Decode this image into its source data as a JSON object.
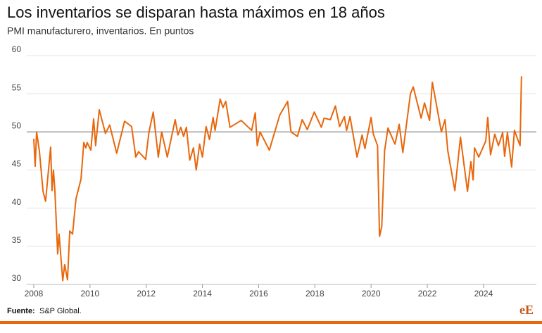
{
  "chart_data": {
    "type": "line",
    "title": "Los inventarios se disparan hasta máximos en 18 años",
    "subtitle": "PMI manufacturero, inventarios. En puntos",
    "source_label": "Fuente:",
    "source": "S&P Global.",
    "logo": "eE",
    "x": [
      2008.0,
      2008.05,
      2008.1,
      2008.2,
      2008.33,
      2008.42,
      2008.6,
      2008.65,
      2008.7,
      2008.75,
      2008.85,
      2008.9,
      2009.03,
      2009.1,
      2009.2,
      2009.28,
      2009.38,
      2009.5,
      2009.68,
      2009.78,
      2009.85,
      2009.9,
      2010.03,
      2010.13,
      2010.2,
      2010.33,
      2010.55,
      2010.7,
      2010.95,
      2011.23,
      2011.48,
      2011.63,
      2011.73,
      2011.98,
      2012.1,
      2012.25,
      2012.43,
      2012.55,
      2012.75,
      2013.03,
      2013.13,
      2013.23,
      2013.33,
      2013.43,
      2013.55,
      2013.68,
      2013.78,
      2013.9,
      2014.0,
      2014.13,
      2014.25,
      2014.38,
      2014.45,
      2014.63,
      2014.73,
      2014.83,
      2014.98,
      2015.38,
      2015.75,
      2015.88,
      2015.95,
      2016.05,
      2016.38,
      2016.75,
      2017.03,
      2017.15,
      2017.38,
      2017.55,
      2017.73,
      2017.98,
      2018.23,
      2018.33,
      2018.55,
      2018.73,
      2018.88,
      2019.05,
      2019.13,
      2019.25,
      2019.5,
      2019.68,
      2019.78,
      2020.0,
      2020.08,
      2020.23,
      2020.3,
      2020.38,
      2020.48,
      2020.6,
      2020.85,
      2021.0,
      2021.13,
      2021.4,
      2021.5,
      2021.78,
      2021.9,
      2022.08,
      2022.18,
      2022.5,
      2022.63,
      2022.73,
      2022.98,
      2023.18,
      2023.43,
      2023.55,
      2023.63,
      2023.68,
      2023.83,
      2024.08,
      2024.15,
      2024.25,
      2024.4,
      2024.53,
      2024.68,
      2024.75,
      2024.85,
      2025.0,
      2025.1,
      2025.3,
      2025.35
    ],
    "series": [
      {
        "name": "PMI manufacturero, inventarios",
        "color": "#e8670c",
        "values": [
          49.1,
          45.5,
          50,
          47.5,
          42.2,
          40.9,
          48,
          42.3,
          45,
          42.4,
          34,
          36.6,
          30.5,
          32.6,
          30.6,
          37,
          36.6,
          41.2,
          43.8,
          48.6,
          47.9,
          48.6,
          47.6,
          51.7,
          48.2,
          52.9,
          49.8,
          50.9,
          47.2,
          51.4,
          50.7,
          46.7,
          47.4,
          46.4,
          50,
          52.6,
          46.7,
          50,
          46.7,
          51.6,
          49.6,
          50.6,
          49.4,
          50.6,
          46.3,
          47.9,
          45,
          48.4,
          46.7,
          50.7,
          49,
          51.9,
          50.2,
          54.3,
          53.2,
          54,
          50.6,
          51.5,
          50.2,
          52.5,
          48.2,
          50,
          47.6,
          52.2,
          54,
          50,
          49.4,
          51.6,
          50.3,
          52.6,
          50.6,
          51.8,
          51.6,
          53.4,
          50.7,
          52,
          50.2,
          52,
          46.7,
          49.6,
          47.8,
          51.9,
          49.7,
          48.2,
          36.3,
          37.6,
          47.5,
          50.5,
          48.4,
          51,
          47.3,
          55,
          55.9,
          51.8,
          53.8,
          51.5,
          56.5,
          50,
          51.6,
          47.5,
          42.3,
          49.3,
          42.2,
          46.1,
          43.7,
          47.9,
          46.7,
          48.8,
          51.9,
          47,
          49.7,
          48.2,
          49.9,
          46.8,
          49.9,
          45.4,
          50.2,
          48.2,
          57.3
        ]
      }
    ],
    "xlim": [
      2007.75,
      2025.88
    ],
    "xticks": [
      2008,
      2010,
      2012,
      2014,
      2016,
      2018,
      2020,
      2022,
      2024
    ],
    "ylim": [
      30,
      60
    ],
    "yticks": [
      30,
      35,
      40,
      45,
      50,
      55,
      60
    ],
    "reference_line": 50,
    "grid": true
  }
}
